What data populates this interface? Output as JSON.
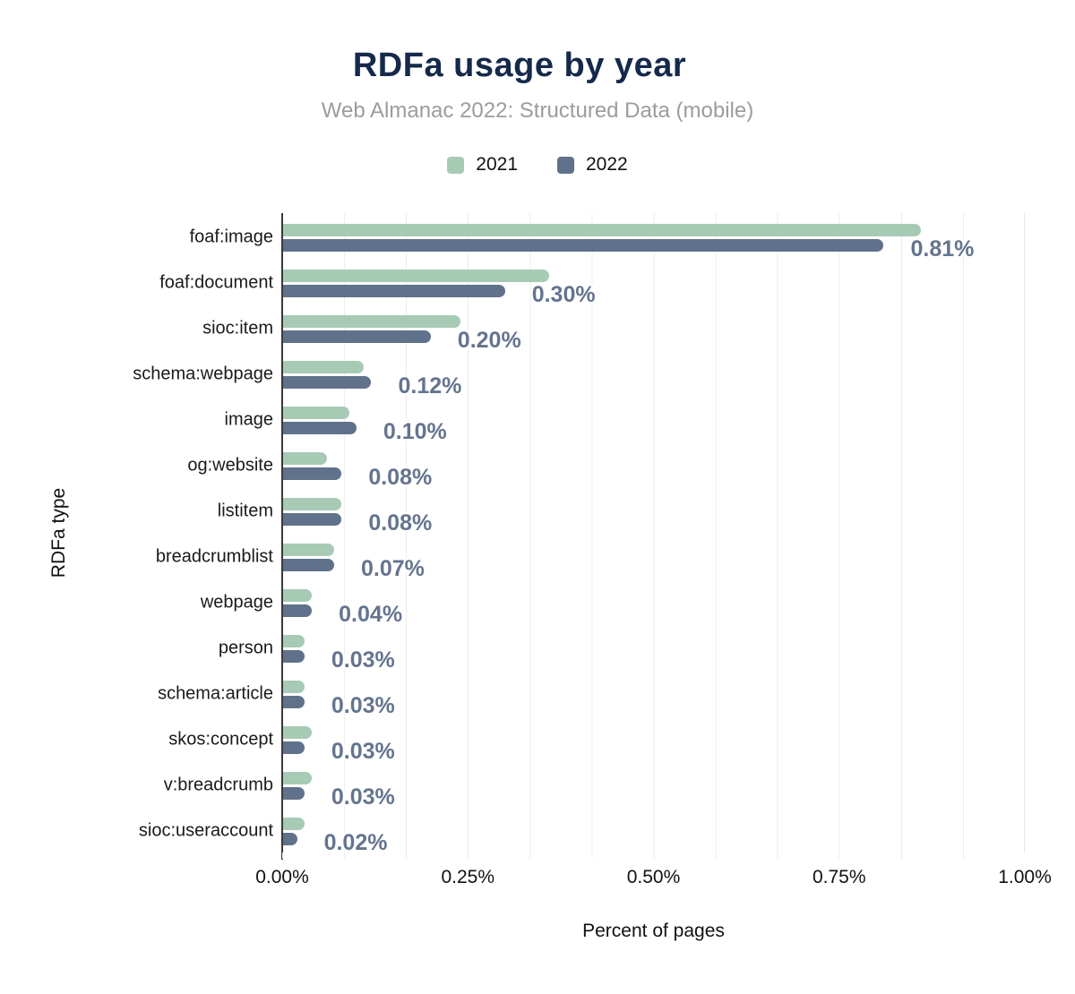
{
  "header": {
    "title": "RDFa usage by year",
    "subtitle": "Web Almanac 2022: Structured Data (mobile)"
  },
  "legend": [
    {
      "label": "2021",
      "color": "#a7cab5"
    },
    {
      "label": "2022",
      "color": "#60728b"
    }
  ],
  "chart_data": {
    "type": "bar",
    "orientation": "horizontal",
    "title": "RDFa usage by year",
    "subtitle": "Web Almanac 2022: Structured Data (mobile)",
    "xlabel": "Percent of pages",
    "ylabel": "RDFa type",
    "xlim": [
      0,
      1.0
    ],
    "x_tick_values": [
      0,
      0.25,
      0.5,
      0.75,
      1.0
    ],
    "x_tick_labels": [
      "0.00%",
      "0.25%",
      "0.50%",
      "0.75%",
      "1.00%"
    ],
    "grid": "vertical minor gridlines every 0.0833%",
    "legend_position": "top-center",
    "categories": [
      "foaf:image",
      "foaf:document",
      "sioc:item",
      "schema:webpage",
      "image",
      "og:website",
      "listitem",
      "breadcrumblist",
      "webpage",
      "person",
      "schema:article",
      "skos:concept",
      "v:breadcrumb",
      "sioc:useraccount"
    ],
    "series": [
      {
        "name": "2021",
        "color": "#a7cab5",
        "values": [
          0.86,
          0.36,
          0.24,
          0.11,
          0.09,
          0.06,
          0.08,
          0.07,
          0.04,
          0.03,
          0.03,
          0.04,
          0.04,
          0.03
        ]
      },
      {
        "name": "2022",
        "color": "#60728b",
        "values": [
          0.81,
          0.3,
          0.2,
          0.12,
          0.1,
          0.08,
          0.08,
          0.07,
          0.04,
          0.03,
          0.03,
          0.03,
          0.03,
          0.02
        ]
      }
    ],
    "data_labels": [
      "0.81%",
      "0.30%",
      "0.20%",
      "0.12%",
      "0.10%",
      "0.08%",
      "0.08%",
      "0.07%",
      "0.04%",
      "0.03%",
      "0.03%",
      "0.03%",
      "0.03%",
      "0.02%"
    ],
    "colors": {
      "title": "#15294b",
      "subtitle": "#9c9c9c",
      "value_labels": "#64748f",
      "gridline": "#ededed",
      "axis_line": "#3a3a3a"
    }
  }
}
